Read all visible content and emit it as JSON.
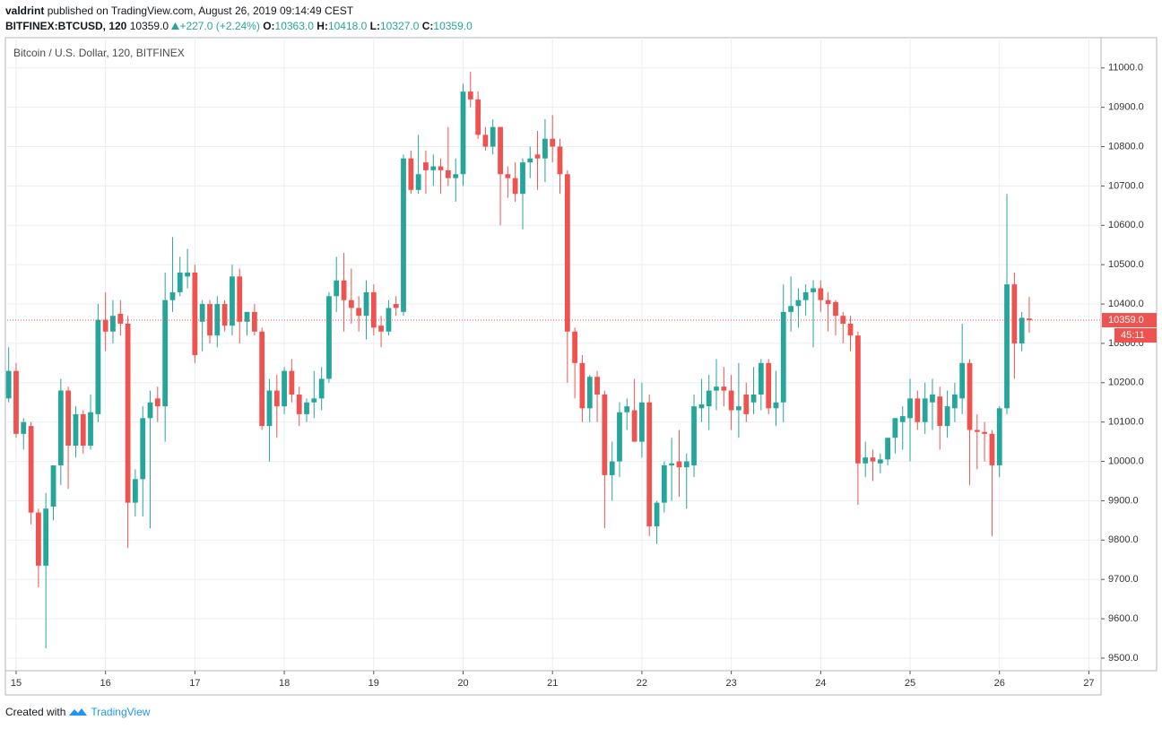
{
  "header": {
    "author": "valdrint",
    "published": "published on TradingView.com, August 26, 2019 09:14:49 CEST",
    "symbol": "BITFINEX:BTCUSD, 120",
    "last": "10359.0",
    "change": "+227.0 (+2.24%)",
    "ohlc": [
      {
        "key": "O:",
        "value": "10363.0"
      },
      {
        "key": "H:",
        "value": "10418.0"
      },
      {
        "key": "L:",
        "value": "10327.0"
      },
      {
        "key": "C:",
        "value": "10359.0"
      }
    ]
  },
  "footer": {
    "prefix": "Created with",
    "brand": "TradingView"
  },
  "chart_data": {
    "type": "candlestick",
    "title": "Bitcoin / U.S. Dollar, 120, BITFINEX",
    "up_color": "#26a69a",
    "down_color": "#ef5350",
    "grid": true,
    "xlim": [
      14.9,
      27.136
    ],
    "xticks": [
      15,
      16,
      17,
      18,
      19,
      20,
      21,
      22,
      23,
      24,
      25,
      26,
      27
    ],
    "ylim": [
      9468,
      11077
    ],
    "yticks": [
      {
        "value": 9500,
        "label": "9500.0"
      },
      {
        "value": 9600,
        "label": "9600.0"
      },
      {
        "value": 9700,
        "label": "9700.0"
      },
      {
        "value": 9800,
        "label": "9800.0"
      },
      {
        "value": 9900,
        "label": "9900.0"
      },
      {
        "value": 10000,
        "label": "10000.0"
      },
      {
        "value": 10100,
        "label": "10100.0"
      },
      {
        "value": 10200,
        "label": "10200.0"
      },
      {
        "value": 10300,
        "label": "10300.0"
      },
      {
        "value": 10400,
        "label": "10400.0"
      },
      {
        "value": 10500,
        "label": "10500.0"
      },
      {
        "value": 10600,
        "label": "10600.0"
      },
      {
        "value": 10700,
        "label": "10700.0"
      },
      {
        "value": 10800,
        "label": "10800.0"
      },
      {
        "value": 10900,
        "label": "10900.0"
      },
      {
        "value": 11000,
        "label": "11000.0"
      }
    ],
    "last_price": {
      "value": 10359,
      "label": "10359.0"
    },
    "countdown": "45:11",
    "x": [
      14.917,
      15.0,
      15.083,
      15.167,
      15.25,
      15.333,
      15.417,
      15.5,
      15.583,
      15.667,
      15.75,
      15.833,
      15.917,
      16.0,
      16.083,
      16.167,
      16.25,
      16.333,
      16.417,
      16.5,
      16.583,
      16.667,
      16.75,
      16.833,
      16.917,
      17.0,
      17.083,
      17.167,
      17.25,
      17.333,
      17.417,
      17.5,
      17.583,
      17.667,
      17.75,
      17.833,
      17.917,
      18.0,
      18.083,
      18.167,
      18.25,
      18.333,
      18.417,
      18.5,
      18.583,
      18.667,
      18.75,
      18.833,
      18.917,
      19.0,
      19.083,
      19.167,
      19.25,
      19.333,
      19.417,
      19.5,
      19.583,
      19.667,
      19.75,
      19.833,
      19.917,
      20.0,
      20.083,
      20.167,
      20.25,
      20.333,
      20.417,
      20.5,
      20.583,
      20.667,
      20.75,
      20.833,
      20.917,
      21.0,
      21.083,
      21.167,
      21.25,
      21.333,
      21.417,
      21.5,
      21.583,
      21.667,
      21.75,
      21.833,
      21.917,
      22.0,
      22.083,
      22.167,
      22.25,
      22.333,
      22.417,
      22.5,
      22.583,
      22.667,
      22.75,
      22.833,
      22.917,
      23.0,
      23.083,
      23.167,
      23.25,
      23.333,
      23.417,
      23.5,
      23.583,
      23.667,
      23.75,
      23.833,
      23.917,
      24.0,
      24.083,
      24.167,
      24.25,
      24.333,
      24.417,
      24.5,
      24.583,
      24.667,
      24.75,
      24.833,
      24.917,
      25.0,
      25.083,
      25.167,
      25.25,
      25.333,
      25.417,
      25.5,
      25.583,
      25.667,
      25.75,
      25.833,
      25.917,
      26.0,
      26.083,
      26.167,
      26.25,
      26.333
    ],
    "open": [
      10160,
      10230,
      10070,
      10090,
      9870,
      9735,
      9885,
      9990,
      10180,
      10040,
      10120,
      10040,
      10120,
      10360,
      10330,
      10375,
      10350,
      9895,
      9955,
      10110,
      10160,
      10140,
      10410,
      10430,
      10470,
      10480,
      10355,
      10400,
      10320,
      10400,
      10345,
      10470,
      10355,
      10380,
      10330,
      10090,
      10180,
      10140,
      10230,
      10170,
      10120,
      10150,
      10160,
      10210,
      10420,
      10460,
      10410,
      10390,
      10370,
      10430,
      10345,
      10330,
      10400,
      10380,
      10770,
      10690,
      10760,
      10740,
      10750,
      10740,
      10720,
      10730,
      10940,
      10920,
      10830,
      10800,
      10850,
      10730,
      10720,
      10680,
      10760,
      10780,
      10770,
      10820,
      10800,
      10730,
      10330,
      10250,
      10135,
      10215,
      10170,
      9965,
      10000,
      10125,
      10130,
      10050,
      10150,
      9835,
      9895,
      9990,
      10000,
      9985,
      9990,
      10135,
      10140,
      10180,
      10190,
      10180,
      10130,
      10170,
      10150,
      10170,
      10250,
      10135,
      10150,
      10380,
      10395,
      10410,
      10430,
      10440,
      10410,
      10405,
      10370,
      10350,
      10320,
      9995,
      10010,
      9995,
      10005,
      10060,
      10100,
      10110,
      10160,
      10100,
      10150,
      10165,
      10090,
      10135,
      10160,
      10250,
      10080,
      10075,
      10070,
      9990,
      10135,
      10450,
      10300,
      10363
    ],
    "high": [
      10290,
      10250,
      10110,
      10100,
      9880,
      9920,
      9990,
      10210,
      10190,
      10140,
      10130,
      10170,
      10400,
      10430,
      10410,
      10410,
      10370,
      9980,
      10140,
      10180,
      10190,
      10480,
      10570,
      10520,
      10540,
      10500,
      10410,
      10410,
      10420,
      10410,
      10500,
      10490,
      10380,
      10400,
      10340,
      10210,
      10220,
      10240,
      10260,
      10190,
      10160,
      10230,
      10240,
      10430,
      10520,
      10530,
      10490,
      10420,
      10460,
      10450,
      10370,
      10410,
      10420,
      10780,
      10790,
      10830,
      10790,
      10780,
      10770,
      10850,
      10770,
      10960,
      10990,
      10940,
      10850,
      10870,
      10850,
      10750,
      10760,
      10770,
      10800,
      10840,
      10870,
      10880,
      10820,
      10740,
      10340,
      10270,
      10220,
      10230,
      10180,
      10050,
      10150,
      10160,
      10210,
      10200,
      10170,
      9900,
      10000,
      10060,
      10080,
      10020,
      10170,
      10210,
      10220,
      10260,
      10240,
      10220,
      10250,
      10200,
      10240,
      10260,
      10260,
      10230,
      10450,
      10470,
      10440,
      10450,
      10460,
      10460,
      10430,
      10410,
      10380,
      10370,
      10330,
      10050,
      10030,
      10020,
      10060,
      10110,
      10140,
      10210,
      10180,
      10200,
      10210,
      10190,
      10180,
      10200,
      10350,
      10260,
      10120,
      10100,
      10080,
      10140,
      10680,
      10480,
      10380,
      10418
    ],
    "low": [
      10150,
      10060,
      10030,
      9840,
      9680,
      9525,
      9850,
      9940,
      9930,
      10010,
      10020,
      10030,
      10100,
      10280,
      10300,
      10320,
      9780,
      9860,
      9860,
      9830,
      10100,
      10050,
      10380,
      10420,
      10440,
      10250,
      10280,
      10300,
      10290,
      10330,
      10320,
      10300,
      10320,
      10320,
      10080,
      10000,
      10060,
      10120,
      10150,
      10090,
      10100,
      10110,
      10130,
      10200,
      10380,
      10330,
      10350,
      10330,
      10310,
      10320,
      10290,
      10320,
      10370,
      10370,
      10680,
      10680,
      10680,
      10700,
      10680,
      10700,
      10660,
      10700,
      10900,
      10820,
      10790,
      10780,
      10600,
      10670,
      10660,
      10590,
      10720,
      10690,
      10710,
      10760,
      10680,
      10200,
      10160,
      10100,
      10100,
      10100,
      9830,
      9900,
      9960,
      10080,
      10060,
      10010,
      9810,
      9790,
      9870,
      9900,
      9910,
      9880,
      9960,
      10100,
      10080,
      10130,
      10140,
      10080,
      10060,
      10100,
      10120,
      10130,
      10120,
      10090,
      10100,
      10330,
      10340,
      10370,
      10290,
      10380,
      10330,
      10320,
      10300,
      10280,
      9890,
      9960,
      9950,
      9970,
      9990,
      10020,
      10030,
      10000,
      10080,
      10070,
      10080,
      10030,
      10060,
      10100,
      10120,
      9940,
      9980,
      10000,
      9810,
      9960,
      10120,
      10210,
      10280,
      10327
    ],
    "close": [
      10230,
      10070,
      10100,
      9870,
      9735,
      9880,
      9990,
      10180,
      10040,
      10120,
      10040,
      10125,
      10360,
      10330,
      10370,
      10350,
      9895,
      9955,
      10110,
      10150,
      10140,
      10410,
      10430,
      10480,
      10480,
      10270,
      10400,
      10320,
      10400,
      10345,
      10470,
      10355,
      10380,
      10330,
      10090,
      10180,
      10140,
      10230,
      10170,
      10120,
      10150,
      10160,
      10210,
      10420,
      10460,
      10410,
      10390,
      10370,
      10430,
      10340,
      10330,
      10390,
      10390,
      10770,
      10690,
      10730,
      10740,
      10750,
      10740,
      10720,
      10730,
      10940,
      10920,
      10830,
      10800,
      10850,
      10730,
      10720,
      10680,
      10760,
      10770,
      10770,
      10820,
      10800,
      10730,
      10330,
      10250,
      10135,
      10215,
      10170,
      9965,
      10000,
      10125,
      10140,
      10050,
      10150,
      9835,
      9895,
      9990,
      9995,
      9985,
      10000,
      10140,
      10145,
      10180,
      10190,
      10180,
      10130,
      10140,
      10120,
      10170,
      10250,
      10135,
      10150,
      10380,
      10395,
      10410,
      10430,
      10440,
      10410,
      10400,
      10370,
      10350,
      10320,
      9995,
      10010,
      10000,
      10005,
      10060,
      10110,
      10115,
      10160,
      10100,
      10160,
      10170,
      10090,
      10140,
      10170,
      10250,
      10080,
      10075,
      10070,
      9990,
      10135,
      10450,
      10300,
      10365,
      10359
    ]
  }
}
